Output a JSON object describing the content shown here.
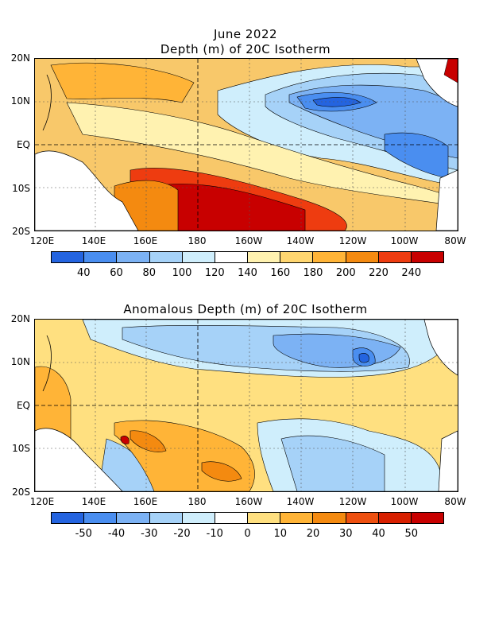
{
  "top": {
    "title_line1": "June 2022",
    "title_line2": "Depth (m) of 20C Isotherm",
    "y_ticks": [
      "20N",
      "10N",
      "EQ",
      "10S",
      "20S"
    ],
    "x_ticks": [
      "120E",
      "140E",
      "160E",
      "180",
      "160W",
      "140W",
      "120W",
      "100W",
      "80W"
    ],
    "colorbar_labels": [
      "40",
      "60",
      "80",
      "100",
      "120",
      "140",
      "160",
      "180",
      "200",
      "220",
      "240"
    ],
    "colorbar_colors": [
      "#2464e0",
      "#4a8ef0",
      "#7cb2f4",
      "#a6d2f8",
      "#cfeefc",
      "#ffffff",
      "#fff2b0",
      "#ffd670",
      "#ffb437",
      "#f48a10",
      "#ee3c10",
      "#c80000"
    ]
  },
  "bottom": {
    "title": "Anomalous Depth (m) of 20C Isotherm",
    "y_ticks": [
      "20N",
      "10N",
      "EQ",
      "10S",
      "20S"
    ],
    "x_ticks": [
      "120E",
      "140E",
      "160E",
      "180",
      "160W",
      "140W",
      "120W",
      "100W",
      "80W"
    ],
    "colorbar_labels": [
      "-50",
      "-40",
      "-30",
      "-20",
      "-10",
      "0",
      "10",
      "20",
      "30",
      "40",
      "50"
    ],
    "colorbar_colors": [
      "#2464e0",
      "#4a8ef0",
      "#7cb2f4",
      "#a6d2f8",
      "#cfeefc",
      "#ffffff",
      "#ffe080",
      "#ffb437",
      "#f48a10",
      "#ee5010",
      "#d82000",
      "#c80000"
    ]
  }
}
